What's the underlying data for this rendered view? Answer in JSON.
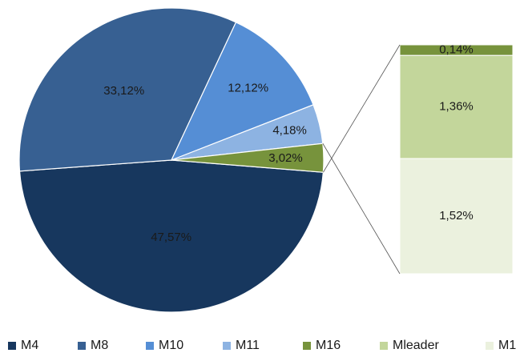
{
  "chart_data": {
    "type": "pie-of-bar",
    "categories": [
      "M4",
      "M8",
      "M10",
      "M11",
      "M16",
      "Mleader",
      "M1"
    ],
    "values": [
      47.57,
      33.12,
      12.12,
      4.18,
      0.14,
      1.36,
      1.52
    ],
    "value_labels": [
      "47,57%",
      "33,12%",
      "12,12%",
      "4,18%",
      "0,14%",
      "1,36%",
      "1,52%"
    ],
    "colors": [
      "#17375e",
      "#376092",
      "#558ed5",
      "#8db3e2",
      "#77933c",
      "#c3d69b",
      "#ebf1de"
    ],
    "other": {
      "value": 3.02,
      "value_label": "3,02%",
      "color": "#77933c"
    },
    "legend": "bottom"
  }
}
